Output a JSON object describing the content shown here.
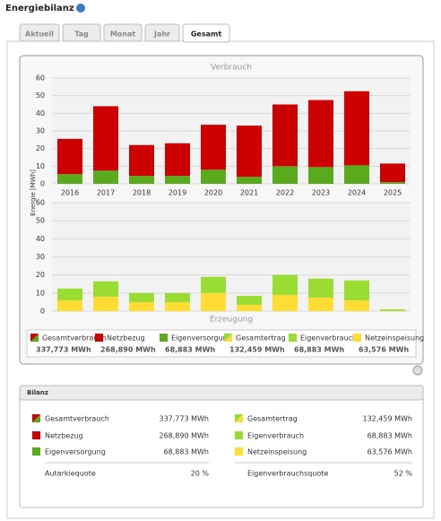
{
  "header": {
    "title": "Energiebilanz"
  },
  "tabs": [
    "Aktuell",
    "Tag",
    "Monat",
    "Jahr",
    "Gesamt"
  ],
  "active_tab": 4,
  "chart_data": [
    {
      "type": "bar",
      "stacked": true,
      "title": "Verbrauch",
      "y_label": "Energie [MWh]",
      "categories": [
        "2016",
        "2017",
        "2018",
        "2019",
        "2020",
        "2021",
        "2022",
        "2023",
        "2024",
        "2025"
      ],
      "series": [
        {
          "name": "Eigenversorgung",
          "color": "#5aaa1e",
          "values": [
            5.5,
            7.5,
            4.5,
            4.5,
            8,
            4,
            10,
            9.5,
            10.5,
            1
          ]
        },
        {
          "name": "Netzbezug",
          "color": "#cc0000",
          "values": [
            20,
            36.5,
            17.5,
            18.5,
            25.5,
            29,
            35,
            38,
            42,
            10.5
          ]
        }
      ],
      "ylim": [
        0,
        60
      ],
      "yticks": [
        0,
        10,
        20,
        30,
        40,
        50,
        60
      ],
      "grid": true
    },
    {
      "type": "bar",
      "stacked": true,
      "title": "Erzeugung",
      "series": [
        {
          "name": "Netzeinspeisung",
          "color": "#ffdd33",
          "values": [
            6,
            8,
            5,
            5,
            10,
            3.5,
            9,
            7.5,
            6,
            0.2
          ]
        },
        {
          "name": "Eigenverbrauch",
          "color": "#99dd33",
          "values": [
            6.5,
            8.5,
            5,
            5,
            9,
            5,
            11,
            10.5,
            11,
            0.8
          ]
        }
      ],
      "ylim": [
        0,
        60
      ],
      "yticks": [
        0,
        10,
        20,
        30,
        40,
        50,
        60
      ],
      "grid": true
    }
  ],
  "legend_extra": [
    "Gesamtverbrauch",
    "Gesamtertrag"
  ],
  "legend_totals": [
    "337,773 MWh",
    "268,890 MWh",
    "68,883 MWh",
    "132,459 MWh",
    "68,883 MWh",
    "63,576 MWh"
  ],
  "bilanz": {
    "title": "Bilanz",
    "left": [
      [
        "Gesamtverbrauch",
        "337,773 MWh"
      ],
      [
        "Netzbezug",
        "268,890 MWh"
      ],
      [
        "Eigenversorgung",
        "68,883 MWh"
      ],
      [
        "Autarkiequote",
        "20 %"
      ]
    ],
    "right": [
      [
        "Gesamtertrag",
        "132,459 MWh"
      ],
      [
        "Eigenverbrauch",
        "68,883 MWh"
      ],
      [
        "Netzeinspeisung",
        "63,576 MWh"
      ],
      [
        "Eigenverbrauchsquote",
        "52 %"
      ]
    ]
  }
}
